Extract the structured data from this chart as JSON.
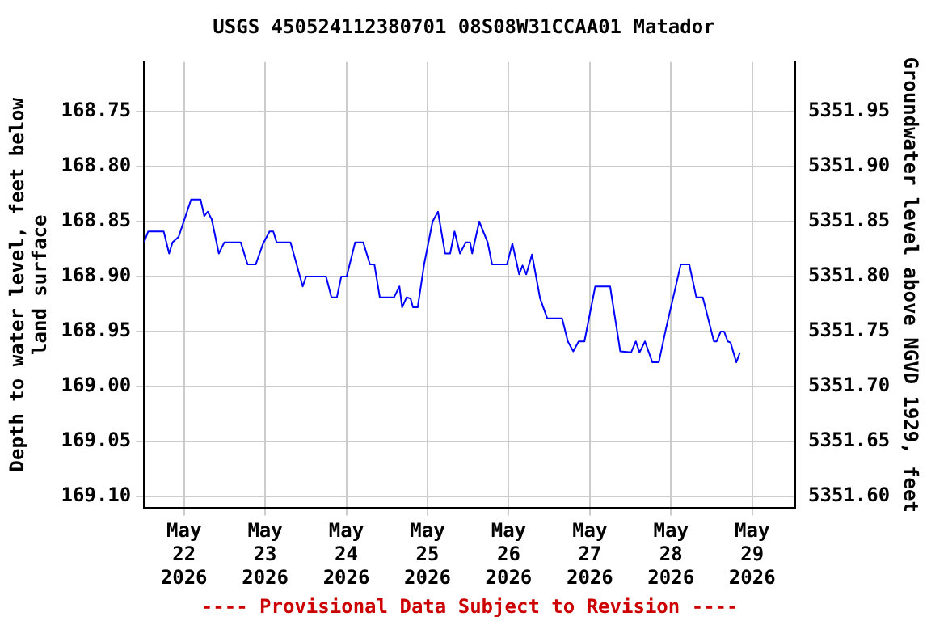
{
  "chart_data": {
    "type": "line",
    "title": "USGS 450524112380701 08S08W31CCAA01 Matador",
    "ylabel": "Depth to water level, feet below land surface",
    "y2label": "Groundwater level above NGVD 1929, feet",
    "annotations": [
      "---- Provisional Data Subject to Revision ----"
    ],
    "x": [
      "2026-05-21T12:12",
      "2026-05-21T13:24",
      "2026-05-21T18:00",
      "2026-05-21T19:36",
      "2026-05-21T20:36",
      "2026-05-21T22:24",
      "2026-05-22T02:06",
      "2026-05-22T04:54",
      "2026-05-22T06:00",
      "2026-05-22T07:00",
      "2026-05-22T08:12",
      "2026-05-22T10:18",
      "2026-05-22T11:54",
      "2026-05-22T16:48",
      "2026-05-22T18:48",
      "2026-05-22T21:12",
      "2026-05-22T23:24",
      "2026-05-23T01:18",
      "2026-05-23T02:24",
      "2026-05-23T03:24",
      "2026-05-23T07:30",
      "2026-05-23T11:06",
      "2026-05-23T12:06",
      "2026-05-23T18:00",
      "2026-05-23T19:36",
      "2026-05-23T21:12",
      "2026-05-23T22:30",
      "2026-05-24T00:06",
      "2026-05-24T02:36",
      "2026-05-24T05:00",
      "2026-05-24T07:00",
      "2026-05-24T08:18",
      "2026-05-24T09:54",
      "2026-05-24T14:06",
      "2026-05-24T15:42",
      "2026-05-24T16:30",
      "2026-05-24T17:48",
      "2026-05-24T19:00",
      "2026-05-24T19:42",
      "2026-05-24T21:06",
      "2026-05-24T23:00",
      "2026-05-25T01:30",
      "2026-05-25T03:06",
      "2026-05-25T05:12",
      "2026-05-25T06:42",
      "2026-05-25T08:00",
      "2026-05-25T09:36",
      "2026-05-25T11:18",
      "2026-05-25T12:36",
      "2026-05-25T13:12",
      "2026-05-25T15:18",
      "2026-05-25T17:48",
      "2026-05-25T19:06",
      "2026-05-25T23:30",
      "2026-05-26T01:06",
      "2026-05-26T03:06",
      "2026-05-26T04:06",
      "2026-05-26T05:12",
      "2026-05-26T06:54",
      "2026-05-26T09:18",
      "2026-05-26T11:24",
      "2026-05-26T15:48",
      "2026-05-26T17:30",
      "2026-05-26T19:06",
      "2026-05-26T20:42",
      "2026-05-26T22:24",
      "2026-05-27T01:36",
      "2026-05-27T06:00",
      "2026-05-27T09:00",
      "2026-05-27T12:12",
      "2026-05-27T13:36",
      "2026-05-27T14:42",
      "2026-05-27T16:18",
      "2026-05-27T18:30",
      "2026-05-27T20:24",
      "2026-05-27T22:24",
      "2026-05-28T02:54",
      "2026-05-28T05:24",
      "2026-05-28T07:30",
      "2026-05-28T09:24",
      "2026-05-28T12:42",
      "2026-05-28T13:30",
      "2026-05-28T14:42",
      "2026-05-28T15:42",
      "2026-05-28T16:48",
      "2026-05-28T17:36",
      "2026-05-28T19:18",
      "2026-05-28T20:24"
    ],
    "series": [
      {
        "color": "#0000ff",
        "values": [
          168.869,
          168.859,
          168.859,
          168.879,
          168.869,
          168.864,
          168.83,
          168.83,
          168.845,
          168.841,
          168.848,
          168.879,
          168.869,
          168.869,
          168.889,
          168.889,
          168.87,
          168.859,
          168.859,
          168.869,
          168.869,
          168.909,
          168.9,
          168.9,
          168.919,
          168.919,
          168.9,
          168.9,
          168.869,
          168.869,
          168.889,
          168.889,
          168.919,
          168.919,
          168.909,
          168.928,
          168.919,
          168.92,
          168.928,
          168.928,
          168.889,
          168.85,
          168.841,
          168.879,
          168.879,
          168.859,
          168.879,
          168.869,
          168.869,
          168.879,
          168.85,
          168.869,
          168.889,
          168.889,
          168.87,
          168.898,
          168.89,
          168.898,
          168.88,
          168.92,
          168.938,
          168.938,
          168.959,
          168.968,
          168.959,
          168.959,
          168.909,
          168.909,
          168.968,
          168.969,
          168.959,
          168.969,
          168.959,
          168.978,
          168.978,
          168.949,
          168.889,
          168.889,
          168.919,
          168.919,
          168.959,
          168.959,
          168.95,
          168.95,
          168.959,
          168.96,
          168.978,
          168.969
        ]
      }
    ],
    "xlim": [
      "2026-05-21T12:12",
      "2026-05-29T12:45"
    ],
    "xticks": [
      {
        "value": "2026-05-22",
        "label": "May 22 2026"
      },
      {
        "value": "2026-05-23",
        "label": "May 23 2026"
      },
      {
        "value": "2026-05-24",
        "label": "May 24 2026"
      },
      {
        "value": "2026-05-25",
        "label": "May 25 2026"
      },
      {
        "value": "2026-05-26",
        "label": "May 26 2026"
      },
      {
        "value": "2026-05-27",
        "label": "May 27 2026"
      },
      {
        "value": "2026-05-28",
        "label": "May 28 2026"
      },
      {
        "value": "2026-05-29",
        "label": "May 29 2026"
      }
    ],
    "ylim": [
      169.11,
      168.705
    ],
    "yticks": [
      {
        "value": 168.75,
        "label": "168.75"
      },
      {
        "value": 168.8,
        "label": "168.80"
      },
      {
        "value": 168.85,
        "label": "168.85"
      },
      {
        "value": 168.9,
        "label": "168.90"
      },
      {
        "value": 168.95,
        "label": "168.95"
      },
      {
        "value": 169.0,
        "label": "169.00"
      },
      {
        "value": 169.05,
        "label": "169.05"
      },
      {
        "value": 169.1,
        "label": "169.10"
      }
    ],
    "y2lim": [
      5351.59,
      5351.995
    ],
    "y2ticks": [
      {
        "value": 5351.6,
        "label": "5351.60"
      },
      {
        "value": 5351.65,
        "label": "5351.65"
      },
      {
        "value": 5351.7,
        "label": "5351.70"
      },
      {
        "value": 5351.75,
        "label": "5351.75"
      },
      {
        "value": 5351.8,
        "label": "5351.80"
      },
      {
        "value": 5351.85,
        "label": "5351.85"
      },
      {
        "value": 5351.9,
        "label": "5351.90"
      },
      {
        "value": 5351.95,
        "label": "5351.95"
      }
    ],
    "grid": true,
    "legend": false,
    "marker": "none",
    "line_style": "solid"
  }
}
